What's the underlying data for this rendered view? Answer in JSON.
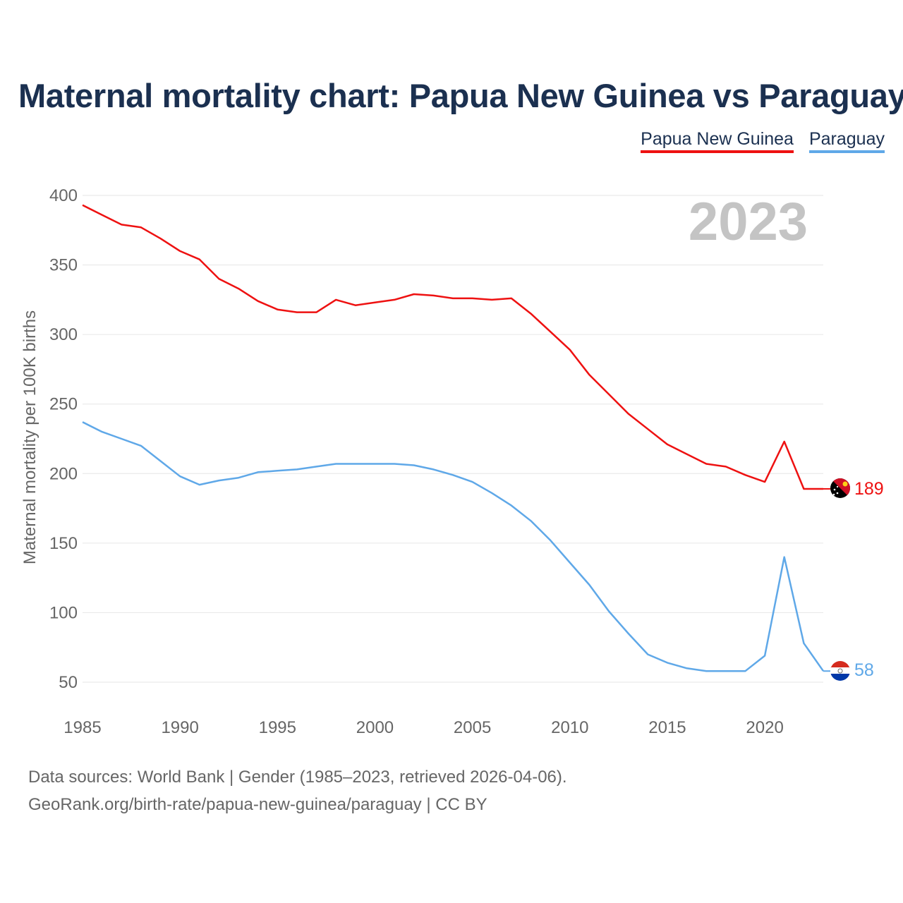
{
  "title": "Maternal mortality chart: Papua New Guinea vs Paraguay",
  "colors": {
    "title": "#1b3050",
    "grid": "#e6e6e6",
    "tick": "#666666",
    "year_watermark": "#c4c4c4"
  },
  "chart_data": {
    "type": "line",
    "title": "Maternal mortality chart: Papua New Guinea vs Paraguay",
    "ylabel": "Maternal mortality per 100K births",
    "xlabel": "",
    "xlim": [
      1985,
      2023
    ],
    "ylim": [
      50,
      400
    ],
    "x_ticks": [
      1985,
      1990,
      1995,
      2000,
      2005,
      2010,
      2015,
      2020
    ],
    "y_ticks": [
      50,
      100,
      150,
      200,
      250,
      300,
      350,
      400
    ],
    "year_label": "2023",
    "grid": true,
    "legend_position": "top-right",
    "x": [
      1985,
      1986,
      1987,
      1988,
      1989,
      1990,
      1991,
      1992,
      1993,
      1994,
      1995,
      1996,
      1997,
      1998,
      1999,
      2000,
      2001,
      2002,
      2003,
      2004,
      2005,
      2006,
      2007,
      2008,
      2009,
      2010,
      2011,
      2012,
      2013,
      2014,
      2015,
      2016,
      2017,
      2018,
      2019,
      2020,
      2021,
      2022,
      2023
    ],
    "series": [
      {
        "name": "Papua New Guinea",
        "color": "#ee1111",
        "end_label": "189",
        "flag_icon": "papua-new-guinea-flag-icon",
        "values": [
          393,
          386,
          379,
          377,
          369,
          360,
          354,
          340,
          333,
          324,
          318,
          316,
          316,
          325,
          321,
          323,
          325,
          329,
          328,
          326,
          326,
          325,
          326,
          315,
          302,
          289,
          271,
          257,
          243,
          232,
          221,
          214,
          207,
          205,
          199,
          194,
          223,
          189,
          189
        ]
      },
      {
        "name": "Paraguay",
        "color": "#5fa8e8",
        "end_label": "58",
        "flag_icon": "paraguay-flag-icon",
        "values": [
          237,
          230,
          225,
          220,
          209,
          198,
          192,
          195,
          197,
          201,
          202,
          203,
          205,
          207,
          207,
          207,
          207,
          206,
          203,
          199,
          194,
          186,
          177,
          166,
          152,
          136,
          120,
          101,
          85,
          70,
          64,
          60,
          58,
          58,
          58,
          69,
          140,
          78,
          58
        ]
      }
    ]
  },
  "source": {
    "line1": "Data sources: World Bank | Gender (1985–2023, retrieved 2026-04-06).",
    "line2": "GeoRank.org/birth-rate/papua-new-guinea/paraguay | CC BY"
  }
}
